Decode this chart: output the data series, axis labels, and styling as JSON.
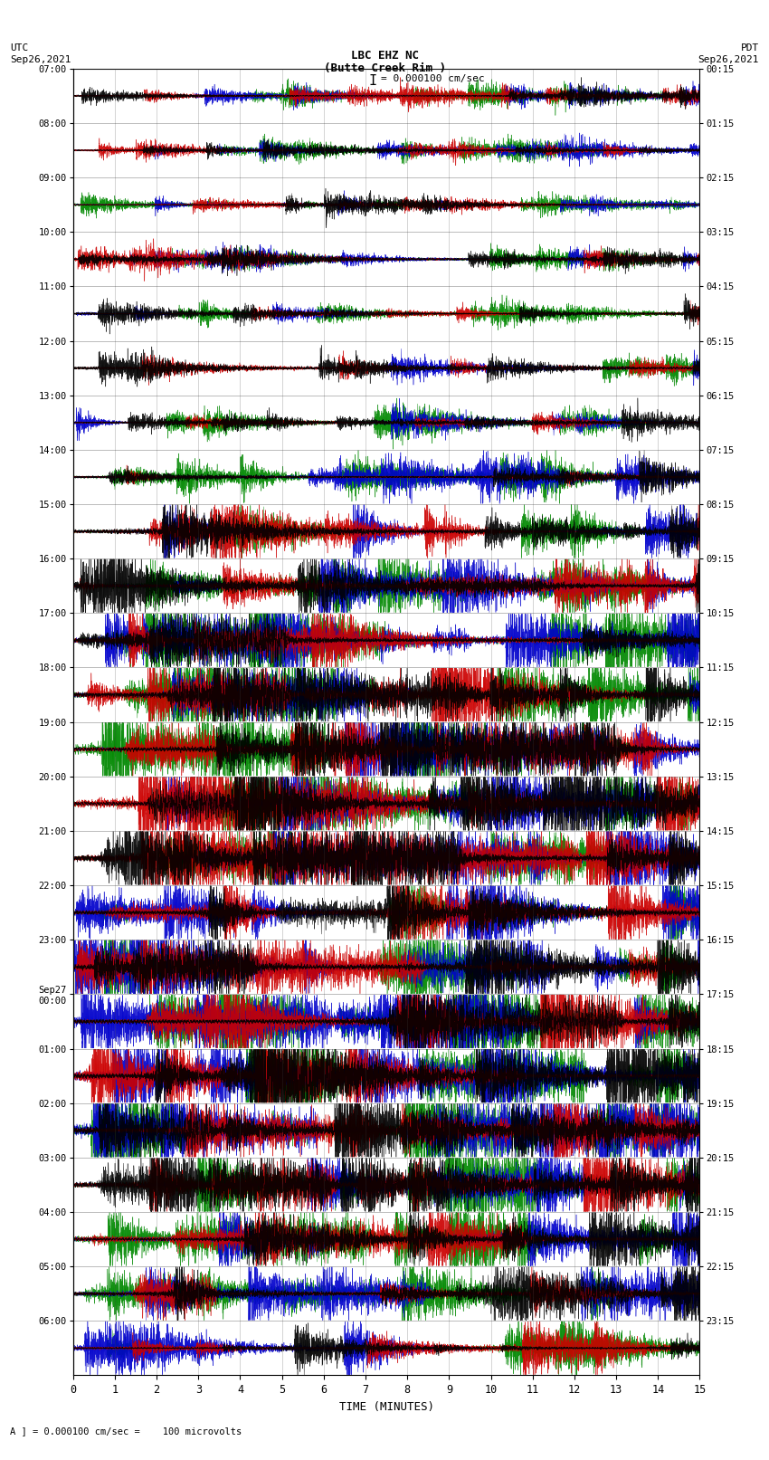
{
  "title_line1": "LBC EHZ NC",
  "title_line2": "(Butte Creek Rim )",
  "scale_label": "I = 0.000100 cm/sec",
  "utc_label": "UTC\nSep26,2021",
  "pdt_label": "PDT\nSep26,2021",
  "xlabel": "TIME (MINUTES)",
  "footer_label": "A ] = 0.000100 cm/sec =    100 microvolts",
  "xlim": [
    0,
    15
  ],
  "xticks": [
    0,
    1,
    2,
    3,
    4,
    5,
    6,
    7,
    8,
    9,
    10,
    11,
    12,
    13,
    14,
    15
  ],
  "ytick_labels_left": [
    "07:00",
    "08:00",
    "09:00",
    "10:00",
    "11:00",
    "12:00",
    "13:00",
    "14:00",
    "15:00",
    "16:00",
    "17:00",
    "18:00",
    "19:00",
    "20:00",
    "21:00",
    "22:00",
    "23:00",
    "Sep27\n00:00",
    "01:00",
    "02:00",
    "03:00",
    "04:00",
    "05:00",
    "06:00"
  ],
  "ytick_labels_right": [
    "00:15",
    "01:15",
    "02:15",
    "03:15",
    "04:15",
    "05:15",
    "06:15",
    "07:15",
    "08:15",
    "09:15",
    "10:15",
    "11:15",
    "12:15",
    "13:15",
    "14:15",
    "15:15",
    "16:15",
    "17:15",
    "18:15",
    "19:15",
    "20:15",
    "21:15",
    "22:15",
    "23:15"
  ],
  "n_rows": 24,
  "background_color": "white",
  "trace_colors": [
    "#000000",
    "#cc0000",
    "#008800",
    "#0000cc"
  ],
  "grid_color": "#444444",
  "seed": 12345,
  "n_pts": 6000,
  "row_amp_scales": [
    0.12,
    0.12,
    0.12,
    0.12,
    0.13,
    0.14,
    0.16,
    0.22,
    0.3,
    0.38,
    0.45,
    0.5,
    0.5,
    0.5,
    0.5,
    0.5,
    0.5,
    0.5,
    0.5,
    0.5,
    0.5,
    0.45,
    0.38,
    0.3
  ],
  "lw": 0.4
}
